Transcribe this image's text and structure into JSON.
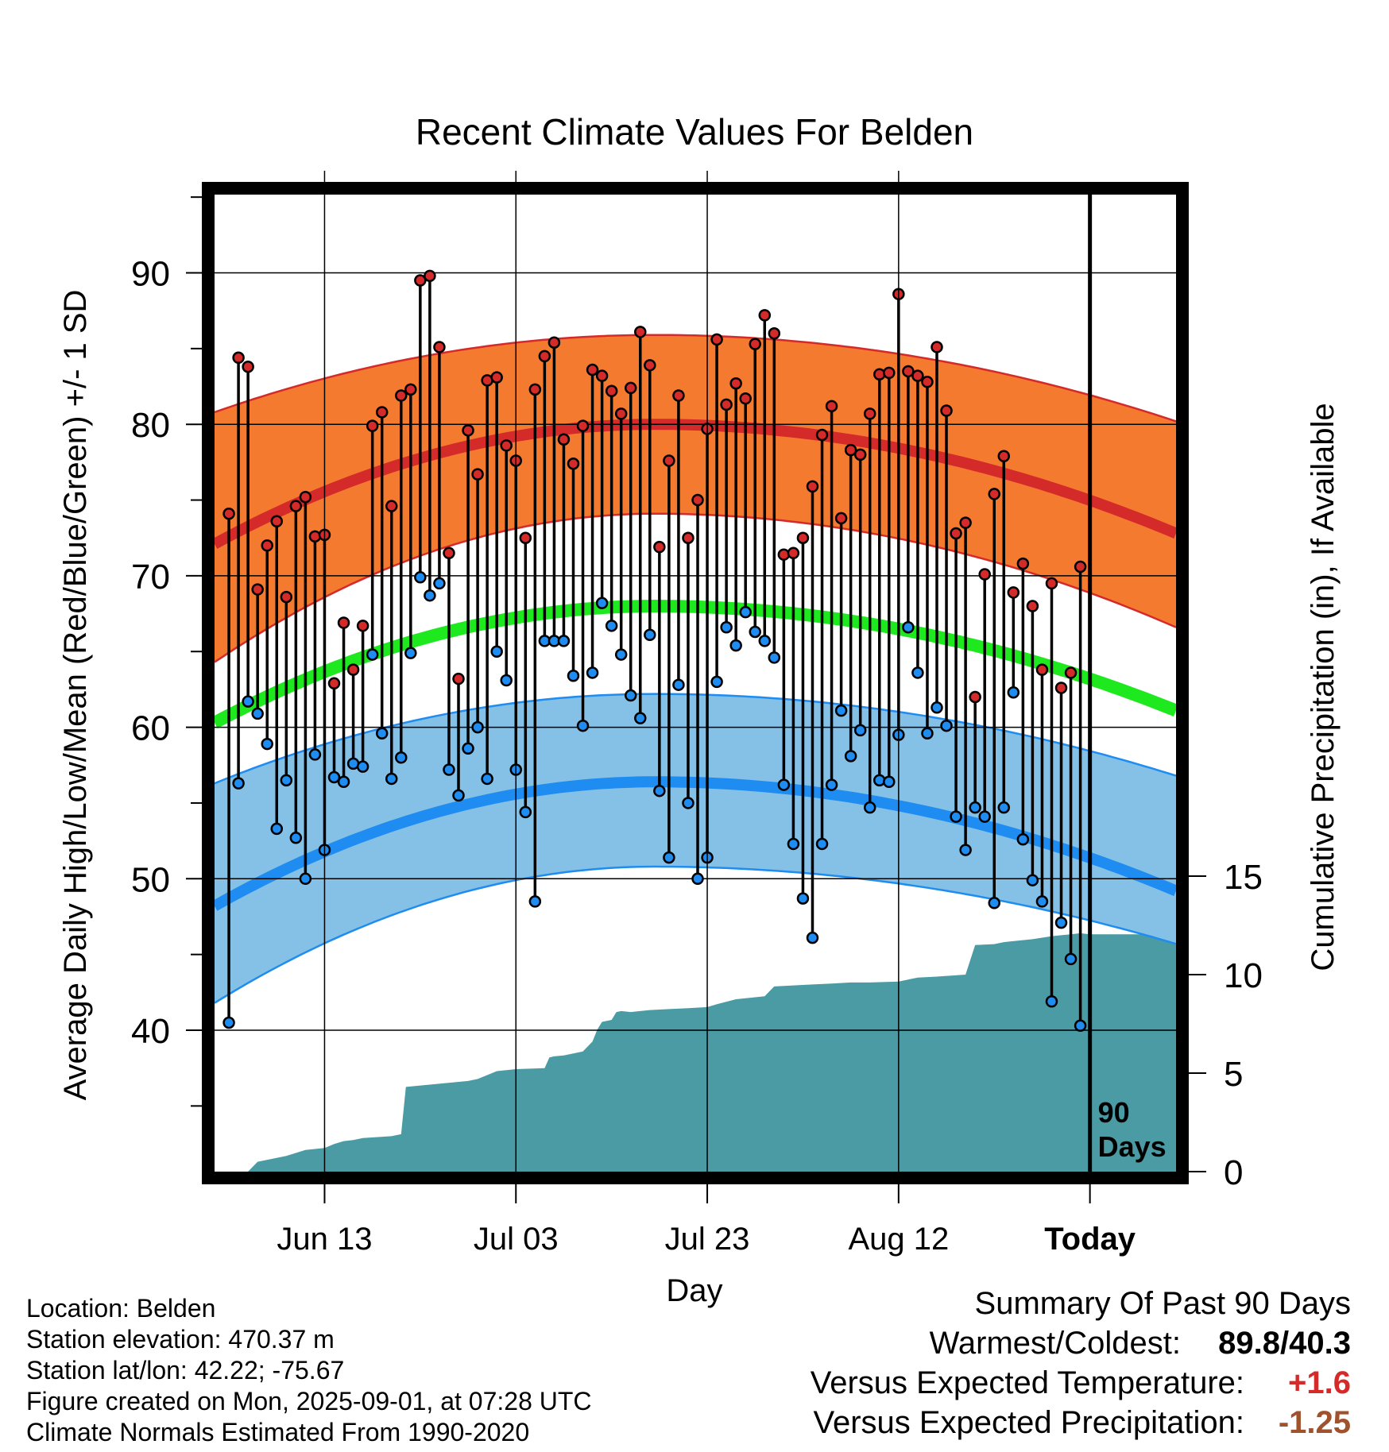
{
  "chart_data": {
    "type": "line",
    "title": "Recent Climate Values For Belden",
    "xlabel": "Day",
    "ylabel_left": "Average Daily High/Low/Mean (Red/Blue/Green) +/- 1 SD",
    "ylabel_right": "Cumulative Precipitation (in), If Available",
    "x_tick_labels": [
      "Jun 13",
      "Jul 03",
      "Jul 23",
      "Aug 12",
      "Today"
    ],
    "x_tick_days": [
      10,
      30,
      50,
      70,
      90
    ],
    "x_range_days": [
      -1.5,
      99
    ],
    "y_ticks_left": [
      40,
      50,
      60,
      70,
      80,
      90
    ],
    "y_range_left": [
      30,
      95
    ],
    "y_ticks_right": [
      0,
      5,
      10,
      15
    ],
    "y_range_right": [
      0,
      15
    ],
    "today_marker_label": "90 Days",
    "grid": true,
    "colors": {
      "high_band": "#f47a30",
      "high_mean": "#d42a2a",
      "low_band": "#85c1e6",
      "low_mean": "#1e8cf0",
      "mean_line": "#1ee81e",
      "precip": "#4a9ba4",
      "high_point": "#d42a2a",
      "low_point": "#1e8cf0"
    },
    "normals": {
      "high_mean_start": 72.1,
      "high_mean_peak": 80.0,
      "high_mean_end": 72.8,
      "high_sd_band_start": [
        64.3,
        80.8
      ],
      "high_sd_band_peak": [
        74.1,
        85.9
      ],
      "high_sd_band_end": [
        66.6,
        80.2
      ],
      "low_mean_start": 48.2,
      "low_mean_peak": 56.4,
      "low_mean_end": 49.2,
      "low_sd_band_start": [
        41.8,
        56.3
      ],
      "low_sd_band_peak": [
        50.8,
        62.2
      ],
      "low_sd_band_end": [
        45.7,
        56.8
      ],
      "mean_line_start": 60.3,
      "mean_line_peak": 68.0,
      "mean_line_end": 61.1,
      "peak_day": 44.5
    },
    "series": [
      {
        "name": "High",
        "values": [
          74.1,
          84.4,
          83.8,
          69.1,
          72.0,
          73.6,
          68.6,
          74.6,
          75.2,
          72.6,
          72.7,
          62.9,
          66.9,
          63.8,
          66.7,
          79.9,
          80.8,
          74.6,
          81.9,
          82.3,
          89.5,
          89.8,
          85.1,
          71.5,
          63.2,
          79.6,
          76.7,
          82.9,
          83.1,
          78.6,
          77.6,
          72.5,
          82.3,
          84.5,
          85.4,
          79.0,
          77.4,
          79.9,
          83.6,
          83.2,
          82.2,
          80.7,
          82.4,
          86.1,
          83.9,
          71.9,
          77.6,
          81.9,
          72.5,
          75.0,
          79.7,
          85.6,
          81.3,
          82.7,
          81.7,
          85.3,
          87.2,
          86.0,
          71.4,
          71.5,
          72.5,
          75.9,
          79.3,
          81.2,
          73.8,
          78.3,
          78.0,
          80.7,
          83.3,
          83.4,
          88.6,
          83.5,
          83.2,
          82.8,
          85.1,
          80.9,
          72.8,
          73.5,
          62.0,
          70.1,
          75.4,
          77.9,
          68.9,
          70.8,
          68.0,
          63.8,
          69.5,
          62.6,
          63.6,
          70.6
        ]
      },
      {
        "name": "Low",
        "values": [
          40.5,
          56.3,
          61.7,
          60.9,
          58.9,
          53.3,
          56.5,
          52.7,
          50.0,
          58.2,
          51.9,
          56.7,
          56.4,
          57.6,
          57.4,
          64.8,
          59.6,
          56.6,
          58.0,
          64.9,
          69.9,
          68.7,
          69.5,
          57.2,
          55.5,
          58.6,
          60.0,
          56.6,
          65.0,
          63.1,
          57.2,
          54.4,
          48.5,
          65.7,
          65.7,
          65.7,
          63.4,
          60.1,
          63.6,
          68.2,
          66.7,
          64.8,
          62.1,
          60.6,
          66.1,
          55.8,
          51.4,
          62.8,
          55.0,
          50.0,
          51.4,
          63.0,
          66.6,
          65.4,
          67.6,
          66.3,
          65.7,
          64.6,
          56.2,
          52.3,
          48.7,
          46.1,
          52.3,
          56.2,
          61.1,
          58.1,
          59.8,
          54.7,
          56.5,
          56.4,
          59.5,
          66.6,
          63.6,
          59.6,
          61.3,
          60.1,
          54.1,
          51.9,
          54.7,
          54.1,
          48.4,
          54.7,
          62.3,
          52.6,
          49.9,
          48.5,
          41.9,
          47.1,
          44.7,
          40.3
        ]
      }
    ],
    "cumulative_precip": {
      "days": [
        2,
        3,
        6,
        8,
        9,
        10,
        11,
        12,
        13,
        14,
        17,
        18,
        18.5,
        25,
        26,
        27,
        28,
        30,
        33,
        33.5,
        34,
        35,
        37,
        38,
        38.5,
        39,
        40,
        40.5,
        41,
        42,
        44,
        46,
        48,
        50,
        51,
        53,
        54,
        56,
        57,
        59,
        61,
        63,
        65,
        67,
        70,
        72,
        74,
        77,
        78,
        80,
        81,
        84,
        86,
        87,
        88,
        89,
        90,
        99
      ],
      "values": [
        0,
        0.5,
        0.8,
        1.1,
        1.15,
        1.2,
        1.4,
        1.55,
        1.6,
        1.7,
        1.8,
        1.9,
        4.3,
        4.6,
        4.7,
        4.9,
        5.1,
        5.2,
        5.25,
        5.8,
        5.85,
        5.9,
        6.1,
        6.6,
        7.2,
        7.6,
        7.7,
        8.1,
        8.15,
        8.1,
        8.2,
        8.25,
        8.3,
        8.35,
        8.5,
        8.75,
        8.8,
        8.9,
        9.4,
        9.45,
        9.5,
        9.55,
        9.6,
        9.6,
        9.65,
        9.85,
        9.9,
        10.0,
        11.5,
        11.55,
        11.65,
        11.8,
        11.95,
        12.0,
        12.05,
        12.1,
        12.05,
        12.05
      ]
    }
  },
  "location": {
    "location_line": "Location: Belden",
    "elevation_line": "Station elevation: 470.37 m",
    "latlon_line": "Station lat/lon: 42.22; -75.67",
    "created_line": "Figure created on Mon, 2025-09-01, at 07:28 UTC",
    "normals_line": "Climate Normals Estimated From 1990-2020"
  },
  "summary": {
    "heading": "Summary Of Past 90 Days",
    "warmest_coldest_label": "Warmest/Coldest:",
    "warmest_value": "89.8",
    "coldest_value": "40.3",
    "temp_label": "Versus Expected Temperature:",
    "temp_value": "+1.6",
    "temp_color": "#d42a2a",
    "precip_label": "Versus Expected Precipitation:",
    "precip_value": "-1.25",
    "precip_color": "#a0522d"
  }
}
